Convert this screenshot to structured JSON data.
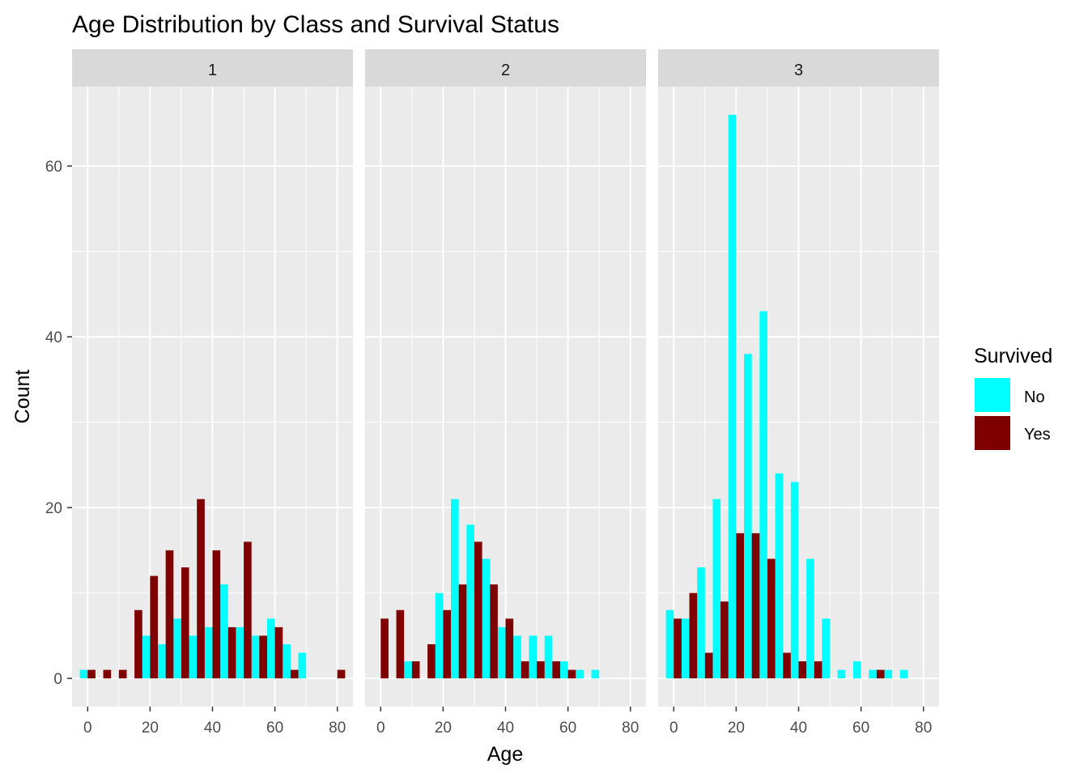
{
  "chart_data": {
    "type": "bar",
    "title": "Age Distribution by Class and Survival Status",
    "xlabel": "Age",
    "ylabel": "Count",
    "xlim": [
      -5,
      85
    ],
    "ylim": [
      -3.3,
      69.3
    ],
    "x_ticks": [
      0,
      20,
      40,
      60,
      80
    ],
    "y_ticks": [
      0,
      20,
      40,
      60
    ],
    "bin_width": 5,
    "bin_centers": [
      0,
      5,
      10,
      15,
      20,
      25,
      30,
      35,
      40,
      45,
      50,
      55,
      60,
      65,
      70,
      75,
      80
    ],
    "legend": {
      "title": "Survived",
      "position": "right",
      "entries": [
        "No",
        "Yes"
      ]
    },
    "colors": {
      "No": "#00ffff",
      "Yes": "#7f0000",
      "panel": "#ebebeb",
      "strip": "#d9d9d9",
      "grid": "#ffffff"
    },
    "facets": [
      {
        "label": "1",
        "series": [
          {
            "name": "No",
            "values": [
              1,
              0,
              0,
              0,
              5,
              4,
              7,
              5,
              6,
              11,
              6,
              5,
              7,
              4,
              3,
              0,
              0
            ]
          },
          {
            "name": "Yes",
            "values": [
              1,
              1,
              1,
              8,
              12,
              15,
              13,
              21,
              15,
              6,
              16,
              5,
              6,
              1,
              0,
              0,
              1
            ]
          }
        ]
      },
      {
        "label": "2",
        "series": [
          {
            "name": "No",
            "values": [
              0,
              0,
              2,
              0,
              10,
              21,
              18,
              14,
              6,
              5,
              5,
              5,
              2,
              1,
              1,
              0,
              0
            ]
          },
          {
            "name": "Yes",
            "values": [
              7,
              8,
              2,
              4,
              8,
              11,
              16,
              11,
              7,
              2,
              2,
              2,
              1,
              0,
              0,
              0,
              0
            ]
          }
        ]
      },
      {
        "label": "3",
        "series": [
          {
            "name": "No",
            "values": [
              8,
              7,
              13,
              21,
              66,
              38,
              43,
              24,
              23,
              14,
              7,
              1,
              2,
              1,
              1,
              1,
              0
            ]
          },
          {
            "name": "Yes",
            "values": [
              7,
              10,
              3,
              9,
              17,
              17,
              14,
              3,
              2,
              2,
              0,
              0,
              0,
              1,
              0,
              0,
              0
            ]
          }
        ]
      }
    ]
  }
}
